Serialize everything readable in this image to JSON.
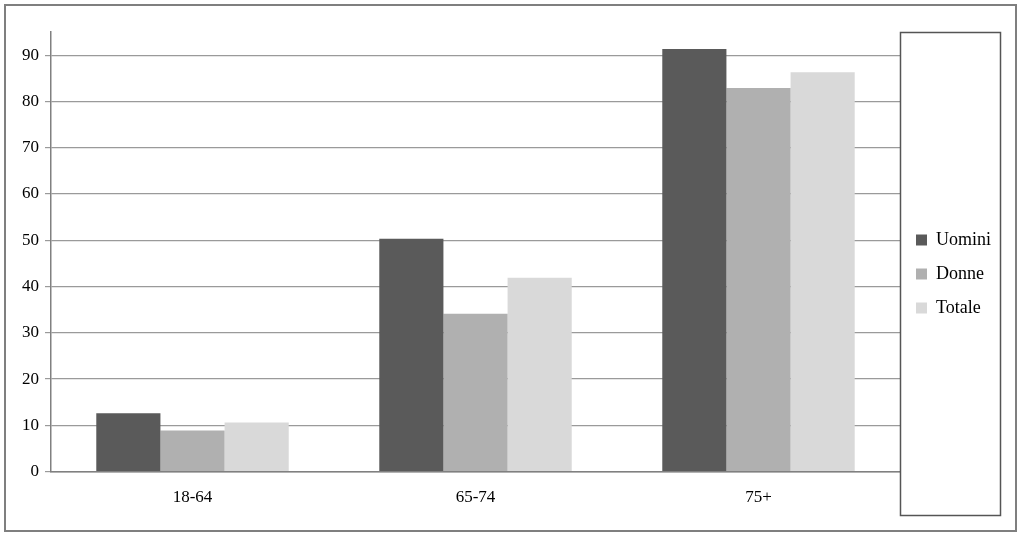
{
  "chart_data": {
    "type": "bar",
    "categories": [
      "18-64",
      "65-74",
      "75+"
    ],
    "series": [
      {
        "name": "Uomini",
        "color": "#5a5a5a",
        "values": [
          12.6,
          50.3,
          91.3
        ]
      },
      {
        "name": "Donne",
        "color": "#b0b0b0",
        "values": [
          8.9,
          34.1,
          82.9
        ]
      },
      {
        "name": "Totale",
        "color": "#d9d9d9",
        "values": [
          10.6,
          41.9,
          86.3
        ]
      }
    ],
    "ylim": [
      0,
      95
    ],
    "yticks": [
      0,
      10,
      20,
      30,
      40,
      50,
      60,
      70,
      80,
      90
    ],
    "grid": true,
    "legend": "right"
  }
}
